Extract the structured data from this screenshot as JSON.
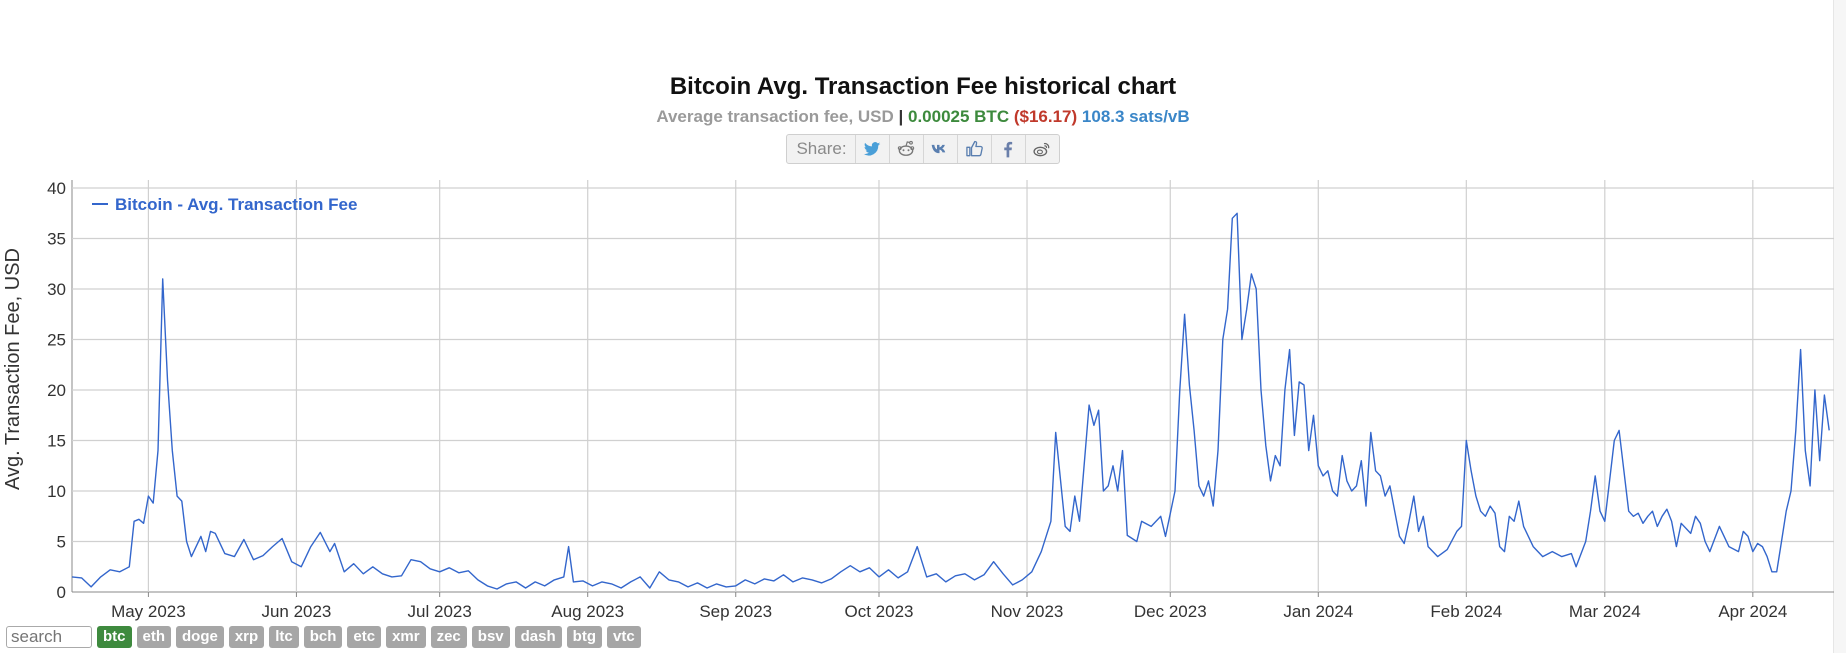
{
  "header": {
    "title": "Bitcoin Avg. Transaction Fee historical chart",
    "subtitle_label": "Average transaction fee, USD",
    "subtitle_sep": " | ",
    "subtitle_btc": "0.00025 BTC",
    "subtitle_usd": "($16.17)",
    "subtitle_sats": "108.3 sats/vB"
  },
  "share": {
    "label": "Share:",
    "buttons": [
      "twitter-icon",
      "reddit-icon",
      "vk-icon",
      "like-icon",
      "facebook-icon",
      "weibo-icon"
    ]
  },
  "colors": {
    "line": "#3366cc",
    "grid": "#d0d0d0",
    "active_coin": "#3e8a3e",
    "coin": "#a6a6a6"
  },
  "coins": {
    "search_placeholder": "search",
    "items": [
      "btc",
      "eth",
      "doge",
      "xrp",
      "ltc",
      "bch",
      "etc",
      "xmr",
      "zec",
      "bsv",
      "dash",
      "btg",
      "vtc"
    ],
    "active": "btc"
  },
  "chart_data": {
    "type": "line",
    "ylabel": "Avg. Transaction Fee, USD",
    "ylim": [
      0,
      40
    ],
    "yticks": [
      0,
      5,
      10,
      15,
      20,
      25,
      30,
      35,
      40
    ],
    "xlim": [
      "2023-04-15",
      "2024-04-18"
    ],
    "xticks": [
      {
        "date": "2023-05-01",
        "label": "May 2023"
      },
      {
        "date": "2023-06-01",
        "label": "Jun 2023"
      },
      {
        "date": "2023-07-01",
        "label": "Jul 2023"
      },
      {
        "date": "2023-08-01",
        "label": "Aug 2023"
      },
      {
        "date": "2023-09-01",
        "label": "Sep 2023"
      },
      {
        "date": "2023-10-01",
        "label": "Oct 2023"
      },
      {
        "date": "2023-11-01",
        "label": "Nov 2023"
      },
      {
        "date": "2023-12-01",
        "label": "Dec 2023"
      },
      {
        "date": "2024-01-01",
        "label": "Jan 2024"
      },
      {
        "date": "2024-02-01",
        "label": "Feb 2024"
      },
      {
        "date": "2024-03-01",
        "label": "Mar 2024"
      },
      {
        "date": "2024-04-01",
        "label": "Apr 2024"
      }
    ],
    "grid": true,
    "legend_position": "top-left",
    "series": [
      {
        "name": "Bitcoin - Avg. Transaction Fee",
        "points": [
          [
            "2023-04-15",
            1.5
          ],
          [
            "2023-04-17",
            1.4
          ],
          [
            "2023-04-19",
            0.5
          ],
          [
            "2023-04-21",
            1.5
          ],
          [
            "2023-04-23",
            2.2
          ],
          [
            "2023-04-25",
            2.0
          ],
          [
            "2023-04-27",
            2.5
          ],
          [
            "2023-04-28",
            7.0
          ],
          [
            "2023-04-29",
            7.2
          ],
          [
            "2023-04-30",
            6.8
          ],
          [
            "2023-05-01",
            9.5
          ],
          [
            "2023-05-02",
            8.8
          ],
          [
            "2023-05-03",
            14.0
          ],
          [
            "2023-05-04",
            31.0
          ],
          [
            "2023-05-05",
            21.0
          ],
          [
            "2023-05-06",
            14.0
          ],
          [
            "2023-05-07",
            9.5
          ],
          [
            "2023-05-08",
            9.0
          ],
          [
            "2023-05-09",
            5.0
          ],
          [
            "2023-05-10",
            3.5
          ],
          [
            "2023-05-12",
            5.5
          ],
          [
            "2023-05-13",
            4.0
          ],
          [
            "2023-05-14",
            6.0
          ],
          [
            "2023-05-15",
            5.8
          ],
          [
            "2023-05-17",
            3.8
          ],
          [
            "2023-05-19",
            3.5
          ],
          [
            "2023-05-21",
            5.2
          ],
          [
            "2023-05-23",
            3.2
          ],
          [
            "2023-05-25",
            3.6
          ],
          [
            "2023-05-27",
            4.5
          ],
          [
            "2023-05-29",
            5.3
          ],
          [
            "2023-05-31",
            3.0
          ],
          [
            "2023-06-02",
            2.5
          ],
          [
            "2023-06-04",
            4.5
          ],
          [
            "2023-06-06",
            5.9
          ],
          [
            "2023-06-08",
            4.0
          ],
          [
            "2023-06-09",
            4.8
          ],
          [
            "2023-06-11",
            2.0
          ],
          [
            "2023-06-13",
            2.8
          ],
          [
            "2023-06-15",
            1.8
          ],
          [
            "2023-06-17",
            2.5
          ],
          [
            "2023-06-19",
            1.8
          ],
          [
            "2023-06-21",
            1.5
          ],
          [
            "2023-06-23",
            1.6
          ],
          [
            "2023-06-25",
            3.2
          ],
          [
            "2023-06-27",
            3.0
          ],
          [
            "2023-06-29",
            2.3
          ],
          [
            "2023-07-01",
            2.0
          ],
          [
            "2023-07-03",
            2.4
          ],
          [
            "2023-07-05",
            1.9
          ],
          [
            "2023-07-07",
            2.1
          ],
          [
            "2023-07-09",
            1.2
          ],
          [
            "2023-07-11",
            0.6
          ],
          [
            "2023-07-13",
            0.3
          ],
          [
            "2023-07-15",
            0.8
          ],
          [
            "2023-07-17",
            1.0
          ],
          [
            "2023-07-19",
            0.4
          ],
          [
            "2023-07-21",
            1.0
          ],
          [
            "2023-07-23",
            0.6
          ],
          [
            "2023-07-25",
            1.2
          ],
          [
            "2023-07-27",
            1.5
          ],
          [
            "2023-07-28",
            4.5
          ],
          [
            "2023-07-29",
            1.0
          ],
          [
            "2023-07-31",
            1.1
          ],
          [
            "2023-08-02",
            0.6
          ],
          [
            "2023-08-04",
            1.0
          ],
          [
            "2023-08-06",
            0.8
          ],
          [
            "2023-08-08",
            0.4
          ],
          [
            "2023-08-10",
            1.0
          ],
          [
            "2023-08-12",
            1.5
          ],
          [
            "2023-08-14",
            0.4
          ],
          [
            "2023-08-16",
            2.0
          ],
          [
            "2023-08-18",
            1.2
          ],
          [
            "2023-08-20",
            1.0
          ],
          [
            "2023-08-22",
            0.5
          ],
          [
            "2023-08-24",
            0.9
          ],
          [
            "2023-08-26",
            0.4
          ],
          [
            "2023-08-28",
            0.8
          ],
          [
            "2023-08-30",
            0.5
          ],
          [
            "2023-09-01",
            0.6
          ],
          [
            "2023-09-03",
            1.2
          ],
          [
            "2023-09-05",
            0.8
          ],
          [
            "2023-09-07",
            1.3
          ],
          [
            "2023-09-09",
            1.1
          ],
          [
            "2023-09-11",
            1.7
          ],
          [
            "2023-09-13",
            1.0
          ],
          [
            "2023-09-15",
            1.4
          ],
          [
            "2023-09-17",
            1.2
          ],
          [
            "2023-09-19",
            0.9
          ],
          [
            "2023-09-21",
            1.3
          ],
          [
            "2023-09-23",
            2.0
          ],
          [
            "2023-09-25",
            2.6
          ],
          [
            "2023-09-27",
            2.0
          ],
          [
            "2023-09-29",
            2.4
          ],
          [
            "2023-10-01",
            1.5
          ],
          [
            "2023-10-03",
            2.2
          ],
          [
            "2023-10-05",
            1.4
          ],
          [
            "2023-10-07",
            2.0
          ],
          [
            "2023-10-09",
            4.5
          ],
          [
            "2023-10-11",
            1.5
          ],
          [
            "2023-10-13",
            1.8
          ],
          [
            "2023-10-15",
            1.0
          ],
          [
            "2023-10-17",
            1.6
          ],
          [
            "2023-10-19",
            1.8
          ],
          [
            "2023-10-21",
            1.2
          ],
          [
            "2023-10-23",
            1.7
          ],
          [
            "2023-10-25",
            3.0
          ],
          [
            "2023-10-27",
            1.8
          ],
          [
            "2023-10-29",
            0.7
          ],
          [
            "2023-10-31",
            1.2
          ],
          [
            "2023-11-02",
            2.0
          ],
          [
            "2023-11-04",
            4.0
          ],
          [
            "2023-11-06",
            7.0
          ],
          [
            "2023-11-07",
            15.8
          ],
          [
            "2023-11-09",
            6.5
          ],
          [
            "2023-11-10",
            6.0
          ],
          [
            "2023-11-11",
            9.5
          ],
          [
            "2023-11-12",
            7.0
          ],
          [
            "2023-11-14",
            18.5
          ],
          [
            "2023-11-15",
            16.5
          ],
          [
            "2023-11-16",
            18.0
          ],
          [
            "2023-11-17",
            10.0
          ],
          [
            "2023-11-18",
            10.5
          ],
          [
            "2023-11-19",
            12.5
          ],
          [
            "2023-11-20",
            10.0
          ],
          [
            "2023-11-21",
            14.0
          ],
          [
            "2023-11-22",
            5.6
          ],
          [
            "2023-11-24",
            5.0
          ],
          [
            "2023-11-25",
            7.0
          ],
          [
            "2023-11-27",
            6.5
          ],
          [
            "2023-11-29",
            7.5
          ],
          [
            "2023-11-30",
            5.5
          ],
          [
            "2023-12-02",
            10.0
          ],
          [
            "2023-12-03",
            20.0
          ],
          [
            "2023-12-04",
            27.5
          ],
          [
            "2023-12-05",
            20.5
          ],
          [
            "2023-12-06",
            16.0
          ],
          [
            "2023-12-07",
            10.5
          ],
          [
            "2023-12-08",
            9.5
          ],
          [
            "2023-12-09",
            11.0
          ],
          [
            "2023-12-10",
            8.5
          ],
          [
            "2023-12-11",
            14.0
          ],
          [
            "2023-12-12",
            25.0
          ],
          [
            "2023-12-13",
            28.0
          ],
          [
            "2023-12-14",
            37.0
          ],
          [
            "2023-12-15",
            37.5
          ],
          [
            "2023-12-16",
            25.0
          ],
          [
            "2023-12-17",
            28.0
          ],
          [
            "2023-12-18",
            31.5
          ],
          [
            "2023-12-19",
            30.0
          ],
          [
            "2023-12-20",
            20.0
          ],
          [
            "2023-12-21",
            14.5
          ],
          [
            "2023-12-22",
            11.0
          ],
          [
            "2023-12-23",
            13.5
          ],
          [
            "2023-12-24",
            12.5
          ],
          [
            "2023-12-25",
            20.0
          ],
          [
            "2023-12-26",
            24.0
          ],
          [
            "2023-12-27",
            15.5
          ],
          [
            "2023-12-28",
            20.8
          ],
          [
            "2023-12-29",
            20.5
          ],
          [
            "2023-12-30",
            14.0
          ],
          [
            "2023-12-31",
            17.5
          ],
          [
            "2024-01-01",
            12.5
          ],
          [
            "2024-01-02",
            11.5
          ],
          [
            "2024-01-03",
            12.0
          ],
          [
            "2024-01-04",
            10.0
          ],
          [
            "2024-01-05",
            9.5
          ],
          [
            "2024-01-06",
            13.5
          ],
          [
            "2024-01-07",
            11.0
          ],
          [
            "2024-01-08",
            10.0
          ],
          [
            "2024-01-09",
            10.5
          ],
          [
            "2024-01-10",
            13.0
          ],
          [
            "2024-01-11",
            8.5
          ],
          [
            "2024-01-12",
            15.8
          ],
          [
            "2024-01-13",
            12.0
          ],
          [
            "2024-01-14",
            11.5
          ],
          [
            "2024-01-15",
            9.5
          ],
          [
            "2024-01-16",
            10.5
          ],
          [
            "2024-01-17",
            8.0
          ],
          [
            "2024-01-18",
            5.5
          ],
          [
            "2024-01-19",
            4.8
          ],
          [
            "2024-01-20",
            7.0
          ],
          [
            "2024-01-21",
            9.5
          ],
          [
            "2024-01-22",
            6.0
          ],
          [
            "2024-01-23",
            7.5
          ],
          [
            "2024-01-24",
            4.5
          ],
          [
            "2024-01-26",
            3.5
          ],
          [
            "2024-01-28",
            4.2
          ],
          [
            "2024-01-30",
            6.0
          ],
          [
            "2024-01-31",
            6.5
          ],
          [
            "2024-02-01",
            15.0
          ],
          [
            "2024-02-02",
            12.0
          ],
          [
            "2024-02-03",
            9.5
          ],
          [
            "2024-02-04",
            8.0
          ],
          [
            "2024-02-05",
            7.5
          ],
          [
            "2024-02-06",
            8.5
          ],
          [
            "2024-02-07",
            7.8
          ],
          [
            "2024-02-08",
            4.5
          ],
          [
            "2024-02-09",
            4.0
          ],
          [
            "2024-02-10",
            7.5
          ],
          [
            "2024-02-11",
            7.0
          ],
          [
            "2024-02-12",
            9.0
          ],
          [
            "2024-02-13",
            6.5
          ],
          [
            "2024-02-15",
            4.5
          ],
          [
            "2024-02-17",
            3.5
          ],
          [
            "2024-02-19",
            4.0
          ],
          [
            "2024-02-21",
            3.5
          ],
          [
            "2024-02-23",
            3.8
          ],
          [
            "2024-02-24",
            2.5
          ],
          [
            "2024-02-26",
            5.0
          ],
          [
            "2024-02-27",
            8.0
          ],
          [
            "2024-02-28",
            11.5
          ],
          [
            "2024-02-29",
            8.0
          ],
          [
            "2024-03-01",
            7.0
          ],
          [
            "2024-03-03",
            15.0
          ],
          [
            "2024-03-04",
            16.0
          ],
          [
            "2024-03-05",
            12.0
          ],
          [
            "2024-03-06",
            8.0
          ],
          [
            "2024-03-07",
            7.5
          ],
          [
            "2024-03-08",
            7.8
          ],
          [
            "2024-03-09",
            6.8
          ],
          [
            "2024-03-10",
            7.5
          ],
          [
            "2024-03-11",
            8.0
          ],
          [
            "2024-03-12",
            6.5
          ],
          [
            "2024-03-13",
            7.5
          ],
          [
            "2024-03-14",
            8.2
          ],
          [
            "2024-03-15",
            7.0
          ],
          [
            "2024-03-16",
            4.5
          ],
          [
            "2024-03-17",
            6.8
          ],
          [
            "2024-03-19",
            5.8
          ],
          [
            "2024-03-20",
            7.5
          ],
          [
            "2024-03-21",
            6.8
          ],
          [
            "2024-03-22",
            5.0
          ],
          [
            "2024-03-23",
            4.0
          ],
          [
            "2024-03-25",
            6.5
          ],
          [
            "2024-03-27",
            4.5
          ],
          [
            "2024-03-29",
            4.0
          ],
          [
            "2024-03-30",
            6.0
          ],
          [
            "2024-03-31",
            5.5
          ],
          [
            "2024-04-01",
            4.0
          ],
          [
            "2024-04-02",
            4.8
          ],
          [
            "2024-04-03",
            4.5
          ],
          [
            "2024-04-04",
            3.5
          ],
          [
            "2024-04-05",
            2.0
          ],
          [
            "2024-04-06",
            2.0
          ],
          [
            "2024-04-07",
            5.0
          ],
          [
            "2024-04-08",
            8.0
          ],
          [
            "2024-04-09",
            10.0
          ],
          [
            "2024-04-10",
            16.0
          ],
          [
            "2024-04-11",
            24.0
          ],
          [
            "2024-04-12",
            14.0
          ],
          [
            "2024-04-13",
            10.5
          ],
          [
            "2024-04-14",
            20.0
          ],
          [
            "2024-04-15",
            13.0
          ],
          [
            "2024-04-16",
            19.5
          ],
          [
            "2024-04-17",
            16.0
          ]
        ]
      }
    ]
  }
}
